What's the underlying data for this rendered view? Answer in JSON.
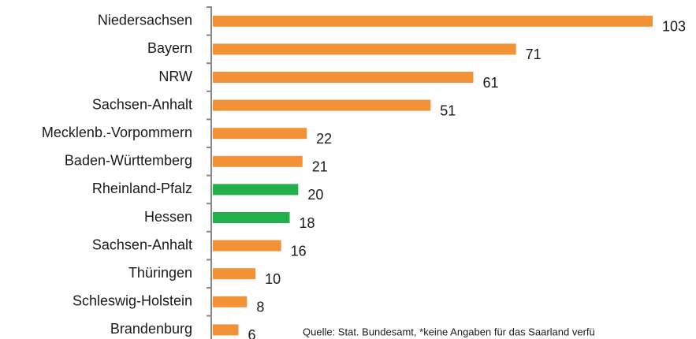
{
  "chart_data": {
    "type": "bar",
    "orientation": "horizontal",
    "categories": [
      "Niedersachsen",
      "Bayern",
      "NRW",
      "Sachsen-Anhalt",
      "Mecklenb.-Vorpommern",
      "Baden-Württemberg",
      "Rheinland-Pfalz",
      "Hessen",
      "Sachsen-Anhalt",
      "Thüringen",
      "Schleswig-Holstein",
      "Brandenburg"
    ],
    "values": [
      103,
      71,
      61,
      51,
      22,
      21,
      20,
      18,
      16,
      10,
      8,
      6
    ],
    "colors": [
      "#f39137",
      "#f39137",
      "#f39137",
      "#f39137",
      "#f39137",
      "#f39137",
      "#22b04b",
      "#22b04b",
      "#f39137",
      "#f39137",
      "#f39137",
      "#f39137"
    ],
    "note": "Quelle: Stat. Bundesamt, *keine Angaben für das Saarland verfü"
  }
}
